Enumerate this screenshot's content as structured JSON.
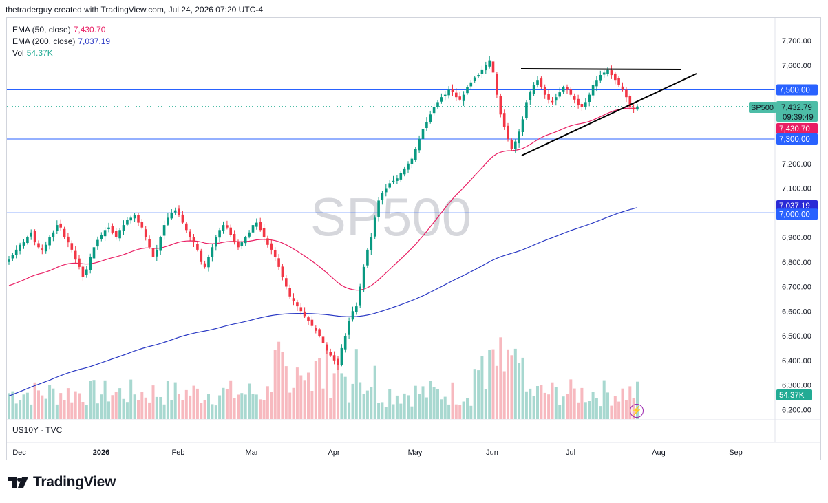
{
  "header": {
    "attribution": "thetraderguy created with TradingView.com, Jul 24, 2026 07:20 UTC-4"
  },
  "legend": {
    "ema50_label": "EMA (50, close)",
    "ema50_value": "7,430.70",
    "ema200_label": "EMA (200, close)",
    "ema200_value": "7,037.19",
    "vol_label": "Vol",
    "vol_value": "54.37K"
  },
  "watermark": "SP500",
  "sub_pane_label": "US10Y · TVC",
  "footer": {
    "brand": "TradingView"
  },
  "colors": {
    "up": "#089981",
    "down": "#f23645",
    "ema50": "#e91e63",
    "ema200": "#2a39c4",
    "hline": "#2962ff",
    "trendline": "#000000",
    "vol_up": "#a8d8d0",
    "vol_down": "#f7b9bf",
    "symbol_tag": "#4dbda7"
  },
  "price_tags": {
    "symbol": "SP500",
    "last": "7,432.79",
    "countdown": "09:39:49",
    "ema50": "7,430.70",
    "level_7500": "7,500.00",
    "level_7300": "7,300.00",
    "ema200": "7,037.19",
    "level_7000": "7,000.00",
    "volume": "54.37K"
  },
  "chart_data": {
    "type": "candlestick",
    "title": "",
    "symbol": "SP500",
    "y_ticks": [
      "7,700.00",
      "7,600.00",
      "7,500.00",
      "7,400.00",
      "7,300.00",
      "7,200.00",
      "7,100.00",
      "7,000.00",
      "6,900.00",
      "6,800.00",
      "6,700.00",
      "6,600.00",
      "6,500.00",
      "6,400.00",
      "6,300.00",
      "6,200.00"
    ],
    "y_tick_values": [
      7700,
      7600,
      7500,
      7400,
      7300,
      7200,
      7100,
      7000,
      6900,
      6800,
      6700,
      6600,
      6500,
      6400,
      6300,
      6200
    ],
    "x_ticks": [
      "Dec",
      "2026",
      "Feb",
      "Mar",
      "Apr",
      "May",
      "Jun",
      "Jul",
      "Aug",
      "Sep"
    ],
    "horizontal_levels": [
      7500,
      7300,
      7000
    ],
    "last_price": 7432.79,
    "ema50_last": 7430.7,
    "ema200_last": 7037.19,
    "volume_last": "54.37K",
    "closes": [
      6810,
      6830,
      6850,
      6870,
      6880,
      6900,
      6920,
      6880,
      6860,
      6850,
      6870,
      6900,
      6920,
      6950,
      6940,
      6900,
      6880,
      6850,
      6810,
      6780,
      6740,
      6770,
      6820,
      6860,
      6890,
      6910,
      6930,
      6940,
      6920,
      6900,
      6930,
      6950,
      6970,
      6980,
      6990,
      6960,
      6940,
      6900,
      6860,
      6820,
      6850,
      6900,
      6950,
      6980,
      7000,
      7010,
      6990,
      6960,
      6930,
      6900,
      6880,
      6850,
      6800,
      6780,
      6820,
      6860,
      6900,
      6930,
      6950,
      6940,
      6910,
      6880,
      6860,
      6880,
      6900,
      6920,
      6950,
      6960,
      6930,
      6900,
      6870,
      6850,
      6820,
      6780,
      6740,
      6700,
      6660,
      6640,
      6620,
      6600,
      6580,
      6560,
      6540,
      6520,
      6500,
      6470,
      6440,
      6420,
      6400,
      6380,
      6450,
      6500,
      6560,
      6600,
      6620,
      6700,
      6780,
      6850,
      6900,
      6980,
      7050,
      7080,
      7100,
      7120,
      7130,
      7140,
      7160,
      7180,
      7200,
      7220,
      7260,
      7300,
      7340,
      7370,
      7400,
      7430,
      7450,
      7470,
      7480,
      7500,
      7490,
      7470,
      7460,
      7480,
      7510,
      7530,
      7550,
      7560,
      7580,
      7600,
      7620,
      7570,
      7480,
      7400,
      7350,
      7300,
      7260,
      7290,
      7330,
      7380,
      7450,
      7490,
      7520,
      7540,
      7510,
      7480,
      7460,
      7450,
      7470,
      7490,
      7510,
      7500,
      7480,
      7460,
      7440,
      7430,
      7450,
      7480,
      7520,
      7540,
      7560,
      7570,
      7580,
      7560,
      7540,
      7520,
      7500,
      7470,
      7430,
      7420,
      7432
    ]
  }
}
